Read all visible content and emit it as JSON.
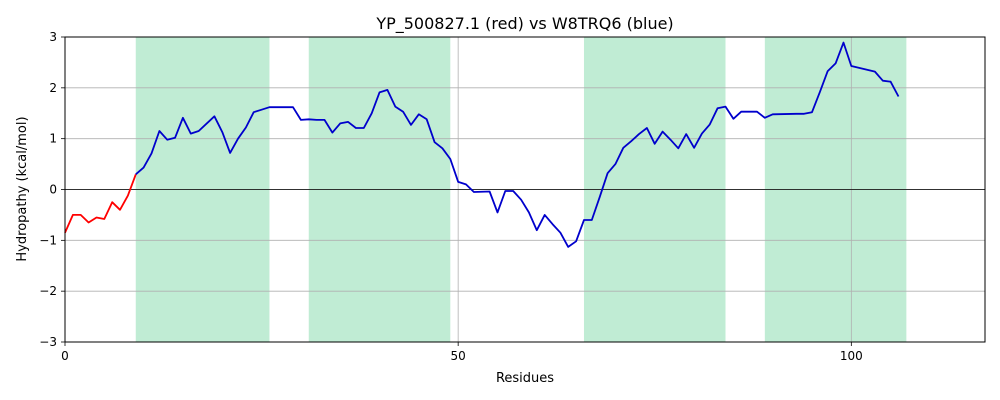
{
  "chart_data": {
    "type": "line",
    "title": "YP_500827.1 (red) vs W8TRQ6 (blue)",
    "xlabel": "Residues",
    "ylabel": "Hydropathy (kcal/mol)",
    "xlim": [
      0,
      117
    ],
    "ylim": [
      -3,
      3
    ],
    "xticks": [
      0,
      50,
      100
    ],
    "yticks": [
      -3,
      -2,
      -1,
      0,
      1,
      2,
      3
    ],
    "grid": true,
    "shaded_regions": [
      [
        9,
        26
      ],
      [
        31,
        49
      ],
      [
        66,
        84
      ],
      [
        89,
        107
      ]
    ],
    "colors": {
      "red": "#ff0000",
      "blue": "#0000cc",
      "shade": "#c0ecd4"
    },
    "series": [
      {
        "color": "red",
        "x": [
          0,
          1,
          2,
          3,
          4,
          5,
          6,
          7,
          8,
          9
        ],
        "y": [
          -0.85,
          -0.5,
          -0.5,
          -0.65,
          -0.55,
          -0.58,
          -0.25,
          -0.4,
          -0.12,
          0.3
        ]
      },
      {
        "color": "blue",
        "x": [
          9,
          10,
          11,
          12,
          13,
          14,
          15,
          16,
          17,
          19,
          20,
          21,
          22,
          23,
          24,
          25,
          26,
          29,
          30,
          31,
          32,
          33,
          34,
          35,
          36,
          37,
          38,
          39,
          40,
          41,
          42,
          43,
          44,
          45,
          46,
          47,
          48,
          49,
          50,
          51,
          52,
          54,
          55,
          56,
          57,
          58,
          59,
          60,
          61,
          62,
          63,
          64,
          65,
          66,
          67,
          68,
          69,
          70,
          71,
          72,
          73,
          74,
          75,
          76,
          77,
          78,
          79,
          80,
          81,
          82,
          83,
          84,
          85,
          86,
          87,
          88,
          89,
          90,
          93,
          94,
          95,
          96,
          97,
          98,
          99,
          100,
          103,
          104,
          105,
          106
        ],
        "y": [
          0.3,
          0.43,
          0.71,
          1.15,
          0.98,
          1.02,
          1.41,
          1.1,
          1.15,
          1.44,
          1.13,
          0.72,
          1.0,
          1.22,
          1.52,
          1.57,
          1.62,
          1.62,
          1.37,
          1.38,
          1.37,
          1.37,
          1.12,
          1.3,
          1.33,
          1.21,
          1.21,
          1.5,
          1.91,
          1.96,
          1.63,
          1.53,
          1.27,
          1.48,
          1.38,
          0.93,
          0.81,
          0.6,
          0.15,
          0.1,
          -0.05,
          -0.04,
          -0.45,
          -0.03,
          -0.03,
          -0.2,
          -0.45,
          -0.8,
          -0.5,
          -0.68,
          -0.85,
          -1.13,
          -1.02,
          -0.6,
          -0.6,
          -0.15,
          0.32,
          0.5,
          0.82,
          0.95,
          1.09,
          1.21,
          0.9,
          1.14,
          0.98,
          0.81,
          1.09,
          0.82,
          1.1,
          1.28,
          1.6,
          1.63,
          1.39,
          1.53,
          1.53,
          1.53,
          1.41,
          1.48,
          1.49,
          1.49,
          1.52,
          1.92,
          2.33,
          2.48,
          2.89,
          2.43,
          2.32,
          2.14,
          2.12,
          1.83
        ]
      }
    ]
  }
}
